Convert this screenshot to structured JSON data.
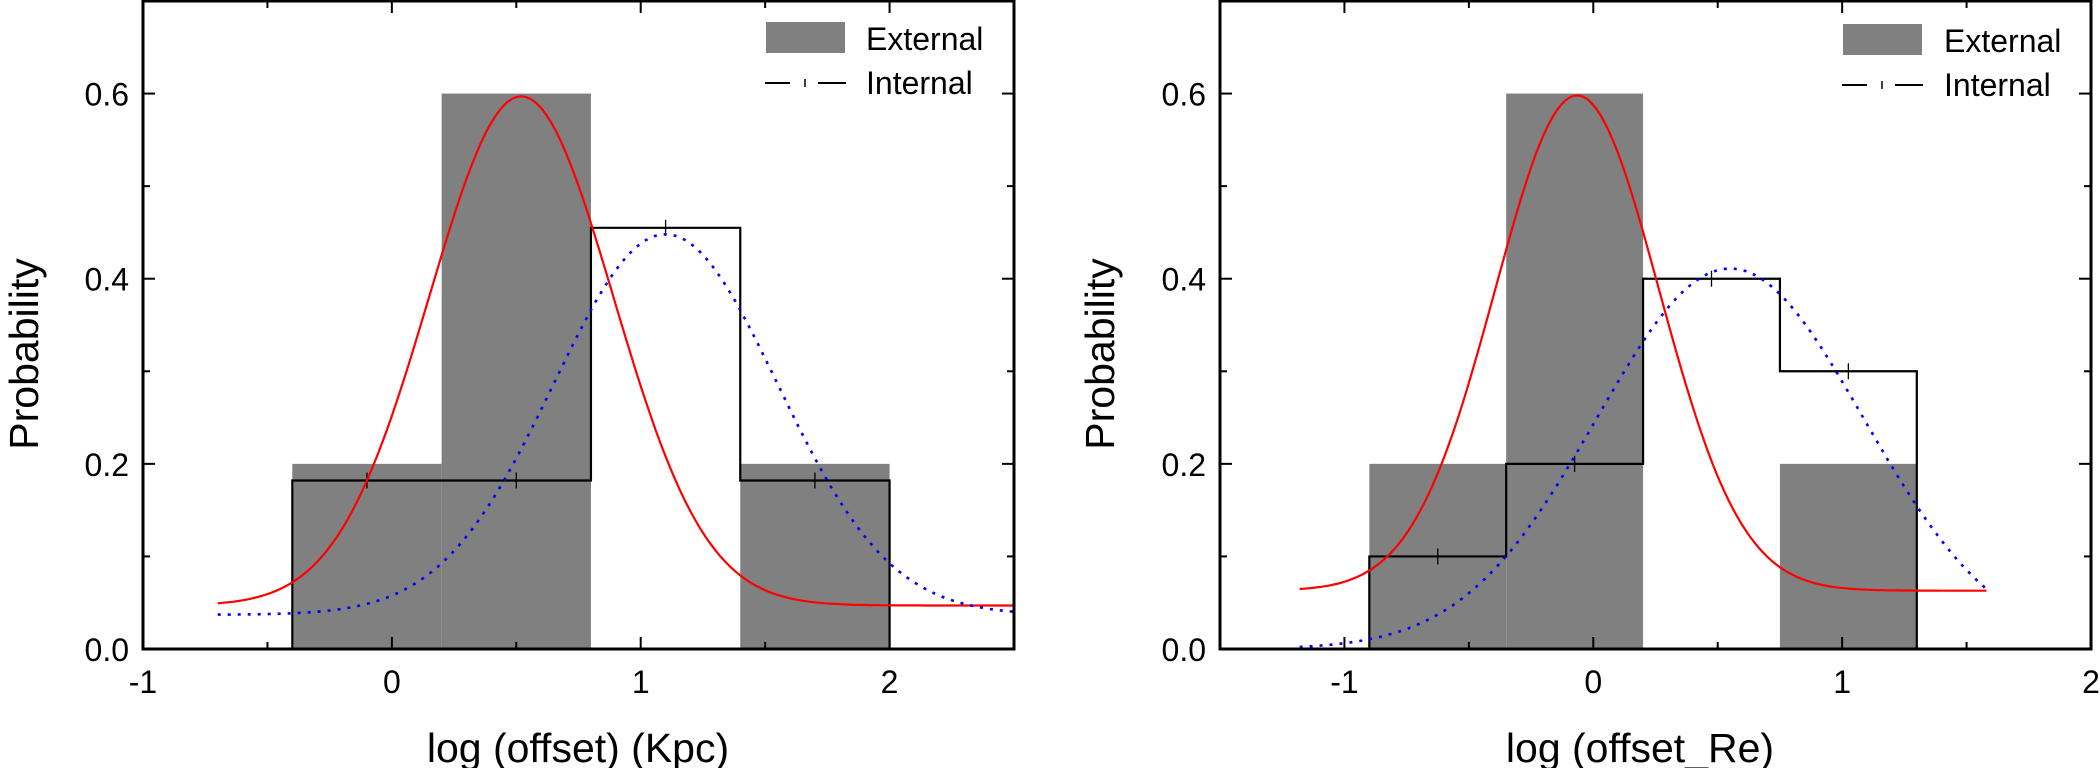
{
  "chart_data": [
    {
      "type": "bar",
      "panel": "left",
      "title": "",
      "xlabel": "log (offset) (Kpc)",
      "ylabel": "Probability",
      "xlim": [
        -1,
        2.5
      ],
      "ylim": [
        0,
        0.7
      ],
      "xticks": [
        -1,
        0,
        1,
        2
      ],
      "xtick_labels": [
        "-1",
        "0",
        "1",
        "2"
      ],
      "xminor_step": 0.5,
      "yticks": [
        0.0,
        0.2,
        0.4,
        0.6
      ],
      "ytick_labels": [
        "0.0",
        "0.2",
        "0.4",
        "0.6"
      ],
      "yminor_step": 0.1,
      "grid": false,
      "legend": {
        "position": "top-right",
        "entries": [
          {
            "label": "External",
            "style": "filled-bar"
          },
          {
            "label": "Internal",
            "style": "step-line"
          }
        ]
      },
      "series": [
        {
          "name": "External",
          "kind": "histogram",
          "color": "#808080",
          "bins": [
            {
              "x0": -0.4,
              "x1": 0.2,
              "value": 0.2
            },
            {
              "x0": 0.2,
              "x1": 0.8,
              "value": 0.6
            },
            {
              "x0": 1.4,
              "x1": 2.0,
              "value": 0.2
            }
          ]
        },
        {
          "name": "Internal",
          "kind": "step-histogram",
          "color": "#000000",
          "bins": [
            {
              "x0": -0.4,
              "x1": 0.2,
              "value": 0.182
            },
            {
              "x0": 0.2,
              "x1": 0.8,
              "value": 0.182
            },
            {
              "x0": 0.8,
              "x1": 1.4,
              "value": 0.455
            },
            {
              "x0": 1.4,
              "x1": 2.0,
              "value": 0.182
            }
          ]
        },
        {
          "name": "External fit",
          "kind": "gaussian",
          "color": "#ff0000",
          "dash": "solid",
          "y0": 0.047,
          "amplitude": 0.55,
          "center": 0.52,
          "sigma": 0.37,
          "x_range": [
            -0.7,
            2.5
          ]
        },
        {
          "name": "Internal fit",
          "kind": "gaussian",
          "color": "#0000ff",
          "dash": "dotted",
          "y0": 0.037,
          "amplitude": 0.411,
          "center": 1.1,
          "sigma": 0.45,
          "x_range": [
            -0.7,
            2.5
          ]
        }
      ]
    },
    {
      "type": "bar",
      "panel": "right",
      "title": "",
      "xlabel": "log (offset_Re)",
      "ylabel": "Probability",
      "xlim": [
        -1.5,
        2
      ],
      "ylim": [
        0,
        0.7
      ],
      "xticks": [
        -1,
        0,
        1,
        2
      ],
      "xtick_labels": [
        "-1",
        "0",
        "1",
        "2"
      ],
      "xminor_step": 0.5,
      "yticks": [
        0.0,
        0.2,
        0.4,
        0.6
      ],
      "ytick_labels": [
        "0.0",
        "0.2",
        "0.4",
        "0.6"
      ],
      "yminor_step": 0.1,
      "grid": false,
      "legend": {
        "position": "top-right",
        "entries": [
          {
            "label": "External",
            "style": "filled-bar"
          },
          {
            "label": "Internal",
            "style": "step-line"
          }
        ]
      },
      "series": [
        {
          "name": "External",
          "kind": "histogram",
          "color": "#808080",
          "bins": [
            {
              "x0": -0.9,
              "x1": -0.35,
              "value": 0.2
            },
            {
              "x0": -0.35,
              "x1": 0.2,
              "value": 0.6
            },
            {
              "x0": 0.75,
              "x1": 1.3,
              "value": 0.2
            }
          ]
        },
        {
          "name": "Internal",
          "kind": "step-histogram",
          "color": "#000000",
          "bins": [
            {
              "x0": -0.9,
              "x1": -0.35,
              "value": 0.1
            },
            {
              "x0": -0.35,
              "x1": 0.2,
              "value": 0.2
            },
            {
              "x0": 0.2,
              "x1": 0.75,
              "value": 0.4
            },
            {
              "x0": 0.75,
              "x1": 1.3,
              "value": 0.3
            }
          ]
        },
        {
          "name": "External fit",
          "kind": "gaussian",
          "color": "#ff0000",
          "dash": "solid",
          "y0": 0.063,
          "amplitude": 0.535,
          "center": -0.065,
          "sigma": 0.33,
          "x_range": [
            -1.18,
            1.58
          ]
        },
        {
          "name": "Internal fit",
          "kind": "gaussian",
          "color": "#0000ff",
          "dash": "dotted",
          "y0": 0.0,
          "amplitude": 0.411,
          "center": 0.55,
          "sigma": 0.536,
          "x_range": [
            -1.18,
            1.58
          ]
        }
      ]
    }
  ]
}
